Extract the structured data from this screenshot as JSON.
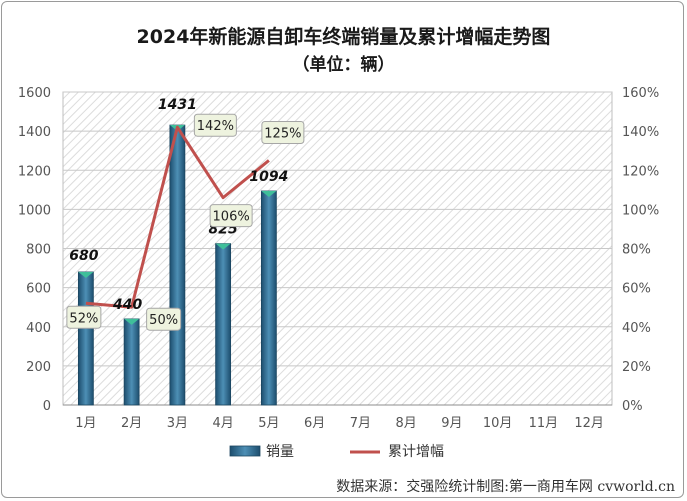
{
  "title_line1": "2024年新能源自卸车终端销量及累计增幅走势图",
  "title_line2": "（单位：辆）",
  "source": "数据来源：交强险统计制图:第一商用车网 cvworld.cn",
  "chart_data": {
    "type": "bar",
    "categories": [
      "1月",
      "2月",
      "3月",
      "4月",
      "5月",
      "6月",
      "7月",
      "8月",
      "9月",
      "10月",
      "11月",
      "12月"
    ],
    "series": [
      {
        "name": "销量",
        "type": "bar",
        "axis": "left",
        "color": "#2e6b8e",
        "values": [
          680,
          440,
          1431,
          825,
          1094,
          null,
          null,
          null,
          null,
          null,
          null,
          null
        ],
        "labels": [
          "680",
          "440",
          "1431",
          "825",
          "1094",
          "",
          "",
          "",
          "",
          "",
          "",
          ""
        ]
      },
      {
        "name": "累计增幅",
        "type": "line",
        "axis": "right",
        "color": "#c0504d",
        "values": [
          52,
          50,
          142,
          106,
          125,
          null,
          null,
          null,
          null,
          null,
          null,
          null
        ],
        "labels": [
          "52%",
          "50%",
          "142%",
          "106%",
          "125%",
          "",
          "",
          "",
          "",
          "",
          "",
          ""
        ]
      }
    ],
    "y_left": {
      "min": 0,
      "max": 1600,
      "ticks": [
        "0",
        "200",
        "400",
        "600",
        "800",
        "1000",
        "1200",
        "1400",
        "1600"
      ]
    },
    "y_right": {
      "min": 0,
      "max": 160,
      "ticks": [
        "0%",
        "20%",
        "40%",
        "60%",
        "80%",
        "100%",
        "120%",
        "140%",
        "160%"
      ]
    },
    "legend": {
      "position": "bottom",
      "items": [
        "销量",
        "累计增幅"
      ]
    },
    "background": "diagonal-hatch"
  }
}
